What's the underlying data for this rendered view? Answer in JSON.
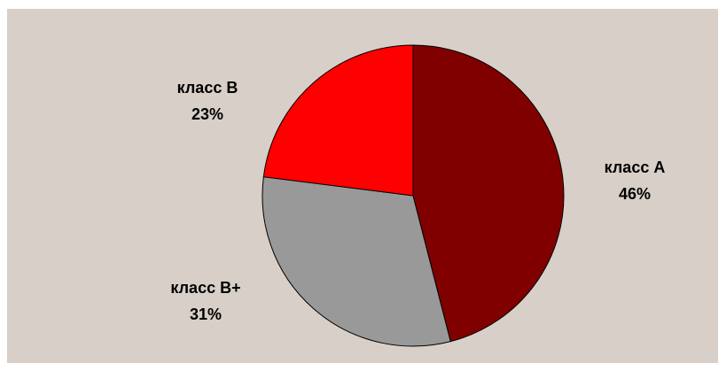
{
  "chart_data": {
    "type": "pie",
    "title": "",
    "categories": [
      "класс A",
      "класс B+",
      "класс B"
    ],
    "values": [
      46,
      31,
      23
    ],
    "value_labels": [
      "46%",
      "31%",
      "23%"
    ],
    "colors": [
      "#800000",
      "#999999",
      "#ff0000"
    ],
    "start_angle_deg": 0,
    "direction": "clockwise",
    "legend": "none",
    "slice_edge_color": "#000000",
    "background_color": "#d8d0c8"
  }
}
